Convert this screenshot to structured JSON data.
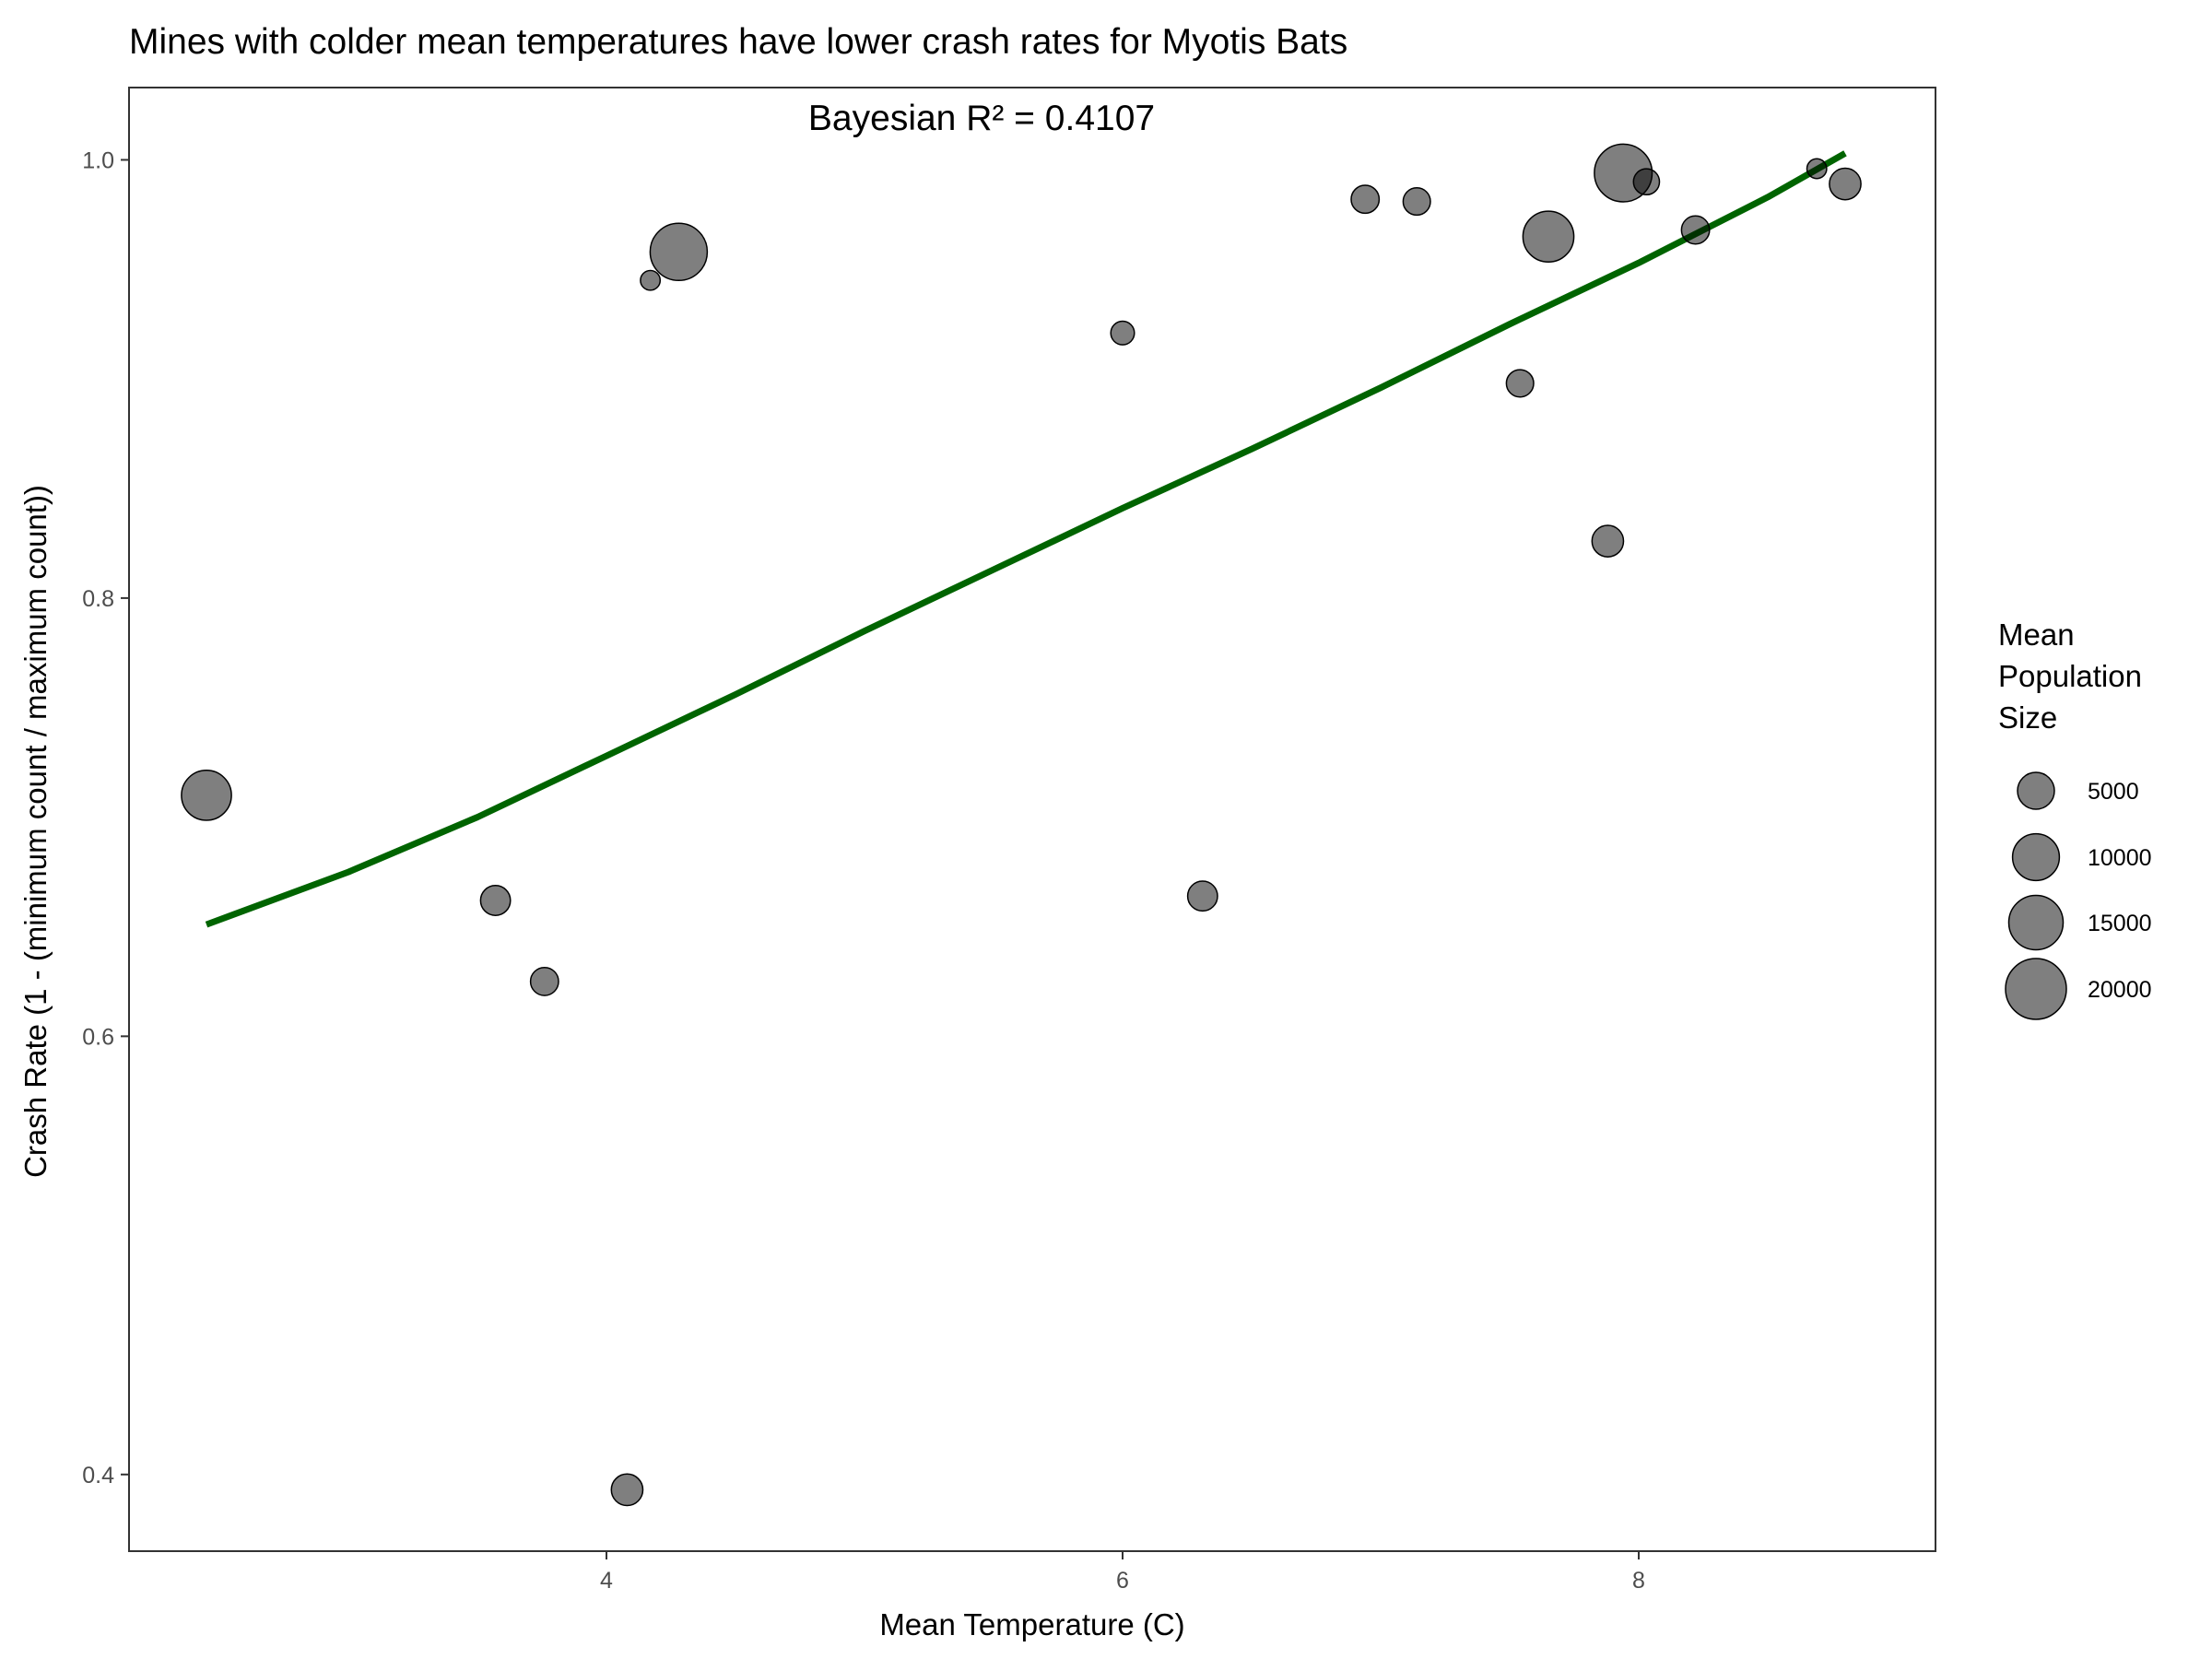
{
  "chart_data": {
    "type": "scatter",
    "title": "Mines with colder mean temperatures have lower crash rates for Myotis Bats",
    "xlabel": "Mean Temperature (C)",
    "ylabel": "Crash Rate (1 - (minimum count / maximum count))",
    "xlim": [
      2.15,
      9.15
    ],
    "ylim": [
      0.365,
      1.033
    ],
    "x_ticks": [
      4,
      6,
      8
    ],
    "y_ticks": [
      0.4,
      0.6,
      0.8,
      1.0
    ],
    "x_tick_labels": [
      "4",
      "6",
      "8"
    ],
    "y_tick_labels": [
      "0.4",
      "0.6",
      "0.8",
      "1.0"
    ],
    "annotation": "Bayesian R² = 0.4107",
    "grid": false,
    "legend": {
      "title_lines": [
        "Mean",
        "Population",
        "Size"
      ],
      "placement": "right",
      "entries": [
        {
          "label": "5000",
          "size_value": 5000
        },
        {
          "label": "10000",
          "size_value": 10000
        },
        {
          "label": "15000",
          "size_value": 15000
        },
        {
          "label": "20000",
          "size_value": 20000
        }
      ]
    },
    "points": [
      {
        "x": 2.45,
        "y": 0.71,
        "size": 12000
      },
      {
        "x": 3.57,
        "y": 0.662,
        "size": 2500
      },
      {
        "x": 3.76,
        "y": 0.625,
        "size": 2000
      },
      {
        "x": 4.08,
        "y": 0.393,
        "size": 3000
      },
      {
        "x": 4.17,
        "y": 0.945,
        "size": 400
      },
      {
        "x": 4.28,
        "y": 0.958,
        "size": 17000
      },
      {
        "x": 6.0,
        "y": 0.921,
        "size": 1000
      },
      {
        "x": 6.31,
        "y": 0.664,
        "size": 2500
      },
      {
        "x": 6.94,
        "y": 0.982,
        "size": 2000
      },
      {
        "x": 7.14,
        "y": 0.981,
        "size": 1800
      },
      {
        "x": 7.54,
        "y": 0.898,
        "size": 1800
      },
      {
        "x": 7.65,
        "y": 0.965,
        "size": 12500
      },
      {
        "x": 7.88,
        "y": 0.826,
        "size": 3000
      },
      {
        "x": 7.94,
        "y": 0.994,
        "size": 17500
      },
      {
        "x": 8.03,
        "y": 0.99,
        "size": 1500
      },
      {
        "x": 8.22,
        "y": 0.968,
        "size": 2000
      },
      {
        "x": 8.69,
        "y": 0.996,
        "size": 400
      },
      {
        "x": 8.8,
        "y": 0.989,
        "size": 3000
      }
    ],
    "fit_line": {
      "color": "#006400",
      "x": [
        2.45,
        3.0,
        3.5,
        4.0,
        4.5,
        5.0,
        5.5,
        6.0,
        6.5,
        7.0,
        7.5,
        8.0,
        8.5,
        8.8
      ],
      "y": [
        0.651,
        0.675,
        0.7,
        0.728,
        0.756,
        0.785,
        0.813,
        0.841,
        0.868,
        0.896,
        0.925,
        0.953,
        0.983,
        1.003
      ]
    },
    "colors": {
      "point_fill": "#000000",
      "point_fill_opacity": 0.5,
      "point_stroke": "#000000",
      "panel_border": "#333333"
    }
  }
}
